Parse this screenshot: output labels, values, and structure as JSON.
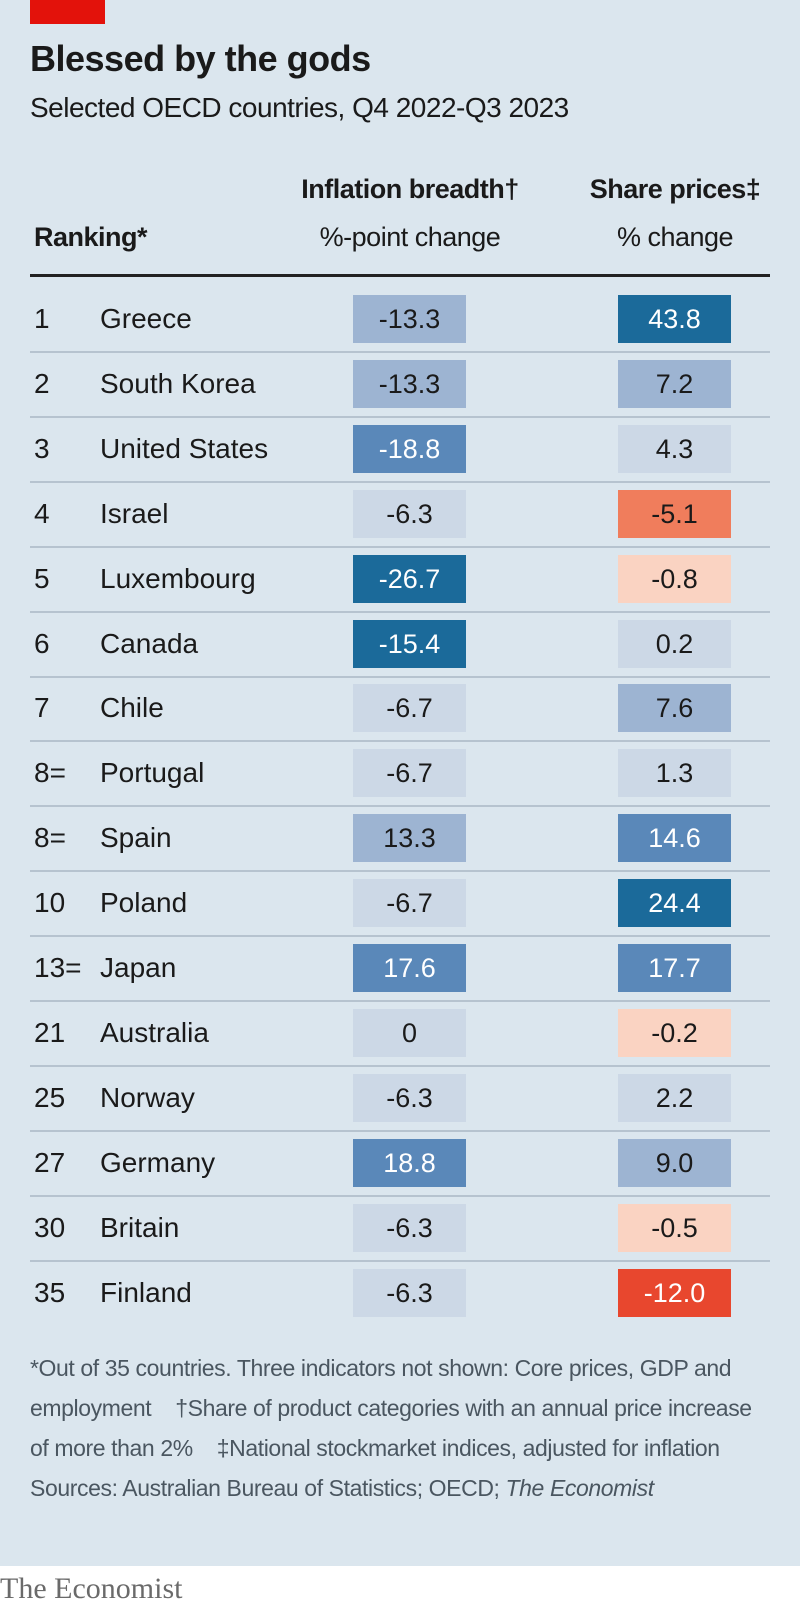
{
  "title": "Blessed by the gods",
  "subtitle": "Selected OECD countries, Q4 2022-Q3 2023",
  "chart_data": {
    "type": "table",
    "columns": {
      "ranking": "Ranking*",
      "inflation": {
        "title": "Inflation breadth†",
        "unit": "%-point change"
      },
      "shares": {
        "title": "Share prices‡",
        "unit": "% change"
      }
    },
    "rows": [
      {
        "rank": "1",
        "country": "Greece",
        "inflation": "-13.3",
        "shares": "43.8",
        "inf_color": "#9db4d2",
        "sh_color": "#1b6a9a"
      },
      {
        "rank": "2",
        "country": "South Korea",
        "inflation": "-13.3",
        "shares": "7.2",
        "inf_color": "#9db4d2",
        "sh_color": "#9db4d2"
      },
      {
        "rank": "3",
        "country": "United States",
        "inflation": "-18.8",
        "shares": "4.3",
        "inf_color": "#5a88b9",
        "sh_color": "#ccd8e6"
      },
      {
        "rank": "4",
        "country": "Israel",
        "inflation": "-6.3",
        "shares": "-5.1",
        "inf_color": "#ccd8e6",
        "sh_color": "#f07d5c"
      },
      {
        "rank": "5",
        "country": "Luxembourg",
        "inflation": "-26.7",
        "shares": "-0.8",
        "inf_color": "#1b6a9a",
        "sh_color": "#fad3c2"
      },
      {
        "rank": "6",
        "country": "Canada",
        "inflation": "-15.4",
        "shares": "0.2",
        "inf_color": "#1b6a9a",
        "sh_color": "#ccd8e6"
      },
      {
        "rank": "7",
        "country": "Chile",
        "inflation": "-6.7",
        "shares": "7.6",
        "inf_color": "#ccd8e6",
        "sh_color": "#9db4d2"
      },
      {
        "rank": "8=",
        "country": "Portugal",
        "inflation": "-6.7",
        "shares": "1.3",
        "inf_color": "#ccd8e6",
        "sh_color": "#ccd8e6"
      },
      {
        "rank": "8=",
        "country": "Spain",
        "inflation": "13.3",
        "shares": "14.6",
        "inf_color": "#9db4d2",
        "sh_color": "#5a88b9"
      },
      {
        "rank": "10",
        "country": "Poland",
        "inflation": "-6.7",
        "shares": "24.4",
        "inf_color": "#ccd8e6",
        "sh_color": "#1b6a9a"
      },
      {
        "rank": "13=",
        "country": "Japan",
        "inflation": "17.6",
        "shares": "17.7",
        "inf_color": "#5a88b9",
        "sh_color": "#5a88b9"
      },
      {
        "rank": "21",
        "country": "Australia",
        "inflation": "0",
        "shares": "-0.2",
        "inf_color": "#ccd8e6",
        "sh_color": "#fad3c2"
      },
      {
        "rank": "25",
        "country": "Norway",
        "inflation": "-6.3",
        "shares": "2.2",
        "inf_color": "#ccd8e6",
        "sh_color": "#ccd8e6"
      },
      {
        "rank": "27",
        "country": "Germany",
        "inflation": "18.8",
        "shares": "9.0",
        "inf_color": "#5a88b9",
        "sh_color": "#9db4d2"
      },
      {
        "rank": "30",
        "country": "Britain",
        "inflation": "-6.3",
        "shares": "-0.5",
        "inf_color": "#ccd8e6",
        "sh_color": "#fad3c2"
      },
      {
        "rank": "35",
        "country": "Finland",
        "inflation": "-6.3",
        "shares": "-12.0",
        "inf_color": "#ccd8e6",
        "sh_color": "#e8472e"
      }
    ]
  },
  "footnotes": {
    "n1": "*Out of 35 countries. Three indicators not shown: Core prices, GDP and employment",
    "n2": "†Share of product categories with an annual price increase of more than 2%",
    "n3": "‡National stockmarket indices, adjusted for inflation",
    "sources_prefix": "Sources: Australian Bureau of Statistics; OECD; ",
    "sources_italic": "The Economist"
  },
  "brand": "The Economist",
  "colors": {
    "accent": "#e3120b",
    "background": "#dbe6ee"
  }
}
